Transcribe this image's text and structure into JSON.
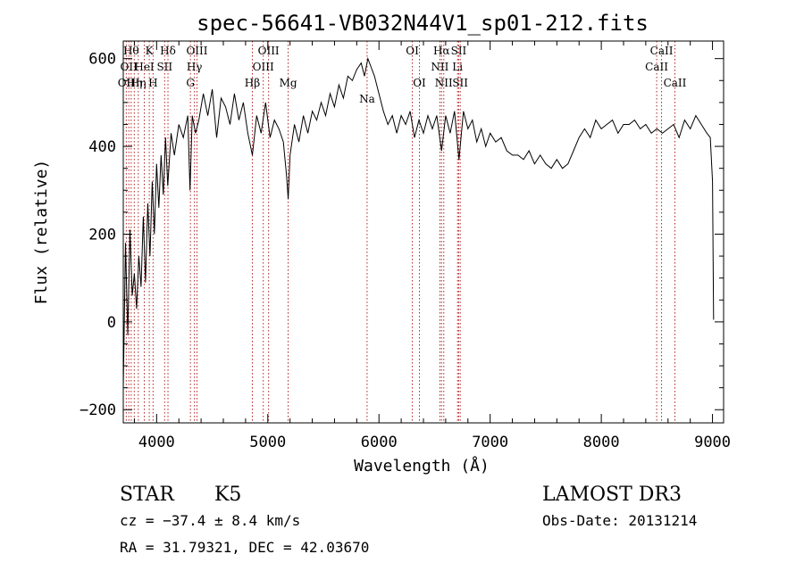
{
  "chart_data": {
    "type": "line",
    "title": "spec-56641-VB032N44V1_sp01-212.fits",
    "xlabel": "Wavelength (Å)",
    "ylabel": "Flux (relative)",
    "xlim": [
      3700,
      9100
    ],
    "ylim": [
      -230,
      640
    ],
    "xticks": [
      {
        "value": 4000,
        "label": "4000"
      },
      {
        "value": 5000,
        "label": "5000"
      },
      {
        "value": 6000,
        "label": "6000"
      },
      {
        "value": 7000,
        "label": "7000"
      },
      {
        "value": 8000,
        "label": "8000"
      },
      {
        "value": 9000,
        "label": "9000"
      }
    ],
    "yticks": [
      {
        "value": -200,
        "label": "−200"
      },
      {
        "value": 0,
        "label": "0"
      },
      {
        "value": 200,
        "label": "200"
      },
      {
        "value": 400,
        "label": "400"
      },
      {
        "value": 600,
        "label": "600"
      }
    ],
    "grid": false,
    "series": [
      {
        "x": [
          3700,
          3720,
          3740,
          3760,
          3780,
          3800,
          3820,
          3840,
          3860,
          3880,
          3900,
          3920,
          3940,
          3960,
          3980,
          4000,
          4020,
          4040,
          4060,
          4080,
          4100,
          4130,
          4160,
          4200,
          4240,
          4280,
          4300,
          4320,
          4350,
          4380,
          4420,
          4460,
          4500,
          4540,
          4580,
          4620,
          4660,
          4700,
          4740,
          4780,
          4820,
          4861,
          4900,
          4940,
          4980,
          5020,
          5060,
          5100,
          5140,
          5170,
          5183,
          5200,
          5240,
          5280,
          5320,
          5360,
          5400,
          5440,
          5480,
          5520,
          5560,
          5600,
          5640,
          5680,
          5720,
          5760,
          5800,
          5840,
          5870,
          5900,
          5930,
          5960,
          6000,
          6040,
          6080,
          6120,
          6160,
          6200,
          6240,
          6280,
          6320,
          6360,
          6400,
          6440,
          6480,
          6520,
          6563,
          6600,
          6640,
          6680,
          6720,
          6760,
          6800,
          6840,
          6880,
          6920,
          6960,
          7000,
          7050,
          7100,
          7150,
          7200,
          7250,
          7300,
          7350,
          7400,
          7450,
          7500,
          7550,
          7600,
          7650,
          7700,
          7750,
          7800,
          7850,
          7900,
          7950,
          8000,
          8050,
          8100,
          8150,
          8200,
          8250,
          8300,
          8350,
          8400,
          8450,
          8500,
          8550,
          8600,
          8650,
          8700,
          8750,
          8800,
          8850,
          8900,
          8950,
          8980,
          9000,
          9010
        ],
        "y": [
          -150,
          180,
          -30,
          210,
          60,
          110,
          30,
          150,
          80,
          240,
          90,
          270,
          150,
          320,
          200,
          360,
          260,
          380,
          290,
          420,
          310,
          430,
          380,
          450,
          420,
          470,
          300,
          470,
          430,
          460,
          520,
          470,
          530,
          420,
          510,
          490,
          450,
          520,
          460,
          500,
          430,
          380,
          470,
          430,
          500,
          420,
          460,
          440,
          410,
          330,
          280,
          380,
          450,
          410,
          470,
          430,
          480,
          460,
          500,
          470,
          520,
          490,
          540,
          510,
          560,
          550,
          575,
          590,
          560,
          600,
          580,
          560,
          520,
          480,
          450,
          470,
          430,
          470,
          450,
          480,
          420,
          460,
          430,
          470,
          440,
          470,
          390,
          470,
          430,
          480,
          370,
          480,
          440,
          460,
          410,
          440,
          400,
          430,
          410,
          420,
          390,
          380,
          380,
          370,
          390,
          360,
          380,
          360,
          350,
          370,
          350,
          360,
          390,
          420,
          440,
          420,
          460,
          440,
          450,
          460,
          430,
          450,
          450,
          460,
          440,
          450,
          430,
          440,
          430,
          440,
          450,
          420,
          460,
          440,
          470,
          450,
          430,
          420,
          320,
          5
        ]
      }
    ],
    "lines": [
      {
        "x": 3727,
        "labels": [
          "OII"
        ],
        "level": 2
      },
      {
        "x": 3750,
        "labels": [
          "OII"
        ],
        "level": 1
      },
      {
        "x": 3771,
        "labels": [
          "Hθ"
        ],
        "level": 0
      },
      {
        "x": 3799,
        "labels": [
          "Hη"
        ],
        "level": 2
      },
      {
        "x": 3835,
        "labels": [
          "Hη"
        ],
        "level": 2
      },
      {
        "x": 3889,
        "labels": [
          "HeI"
        ],
        "level": 1
      },
      {
        "x": 3934,
        "labels": [
          "K"
        ],
        "level": 0
      },
      {
        "x": 3968,
        "labels": [
          "H"
        ],
        "level": 2
      },
      {
        "x": 4072,
        "labels": [
          "SII"
        ],
        "level": 1
      },
      {
        "x": 4102,
        "labels": [
          "Hδ"
        ],
        "level": 0
      },
      {
        "x": 4304,
        "labels": [
          "G"
        ],
        "level": 2
      },
      {
        "x": 4340,
        "labels": [
          "Hγ"
        ],
        "level": 1
      },
      {
        "x": 4363,
        "labels": [
          "OIII"
        ],
        "level": 0
      },
      {
        "x": 4861,
        "labels": [
          "Hβ"
        ],
        "level": 2
      },
      {
        "x": 4959,
        "labels": [
          "OIII"
        ],
        "level": 1
      },
      {
        "x": 5007,
        "labels": [
          "OIII"
        ],
        "level": 0
      },
      {
        "x": 5183,
        "labels": [
          "Mg"
        ],
        "level": 2
      },
      {
        "x": 5893,
        "labels": [
          "Na"
        ],
        "level": 3
      },
      {
        "x": 6300,
        "labels": [
          "OI"
        ],
        "level": 0
      },
      {
        "x": 6364,
        "labels": [
          "OI"
        ],
        "level": 2
      },
      {
        "x": 6548,
        "labels": [
          "NII"
        ],
        "level": 1
      },
      {
        "x": 6563,
        "labels": [
          "Hα"
        ],
        "level": 0
      },
      {
        "x": 6583,
        "labels": [
          "NII"
        ],
        "level": 2
      },
      {
        "x": 6707,
        "labels": [
          "Li"
        ],
        "level": 1
      },
      {
        "x": 6717,
        "labels": [
          "SII"
        ],
        "level": 0
      },
      {
        "x": 6731,
        "labels": [
          "SII"
        ],
        "level": 2
      },
      {
        "x": 8498,
        "labels": [
          "CaII"
        ],
        "level": 1
      },
      {
        "x": 8542,
        "labels": [
          "CaII"
        ],
        "level": 0
      },
      {
        "x": 8662,
        "labels": [
          "CaII"
        ],
        "level": 2
      }
    ]
  },
  "info": {
    "object_class": "STAR",
    "subclass": "K5",
    "survey": "LAMOST DR3",
    "cz": "cz = −37.4 ± 8.4 km/s",
    "obs_date": "Obs-Date: 20131214",
    "coords": "RA =  31.79321, DEC =  42.03670"
  }
}
